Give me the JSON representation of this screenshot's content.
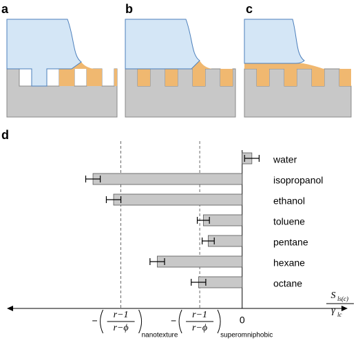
{
  "panel_labels": [
    "a",
    "b",
    "c",
    "d"
  ],
  "chart_data": {
    "type": "bar",
    "orientation": "horizontal",
    "categories": [
      "water",
      "isopropanol",
      "ethanol",
      "toluene",
      "pentane",
      "hexane",
      "octane"
    ],
    "values": [
      0.08,
      -1.23,
      -1.06,
      -0.32,
      -0.28,
      -0.7,
      -0.36
    ],
    "errors": [
      0.06,
      0.06,
      0.06,
      0.05,
      0.05,
      0.06,
      0.06
    ],
    "color": "#c8c8c8",
    "xlim": [
      -1.94,
      0.87
    ],
    "xticks": [
      {
        "value": -1,
        "label": "−",
        "numerator": "r−1",
        "denominator": "r−ϕ",
        "subscript": "nanotexture"
      },
      {
        "value": -0.35,
        "label": "−",
        "numerator": "r−1",
        "denominator": "r−ϕ",
        "subscript": "superomniphobic"
      },
      0
    ],
    "xlabel": {
      "numerator": "S",
      "numerator_sub": "ls(c)",
      "denominator": "γ",
      "denominator_sub": "lc"
    }
  }
}
